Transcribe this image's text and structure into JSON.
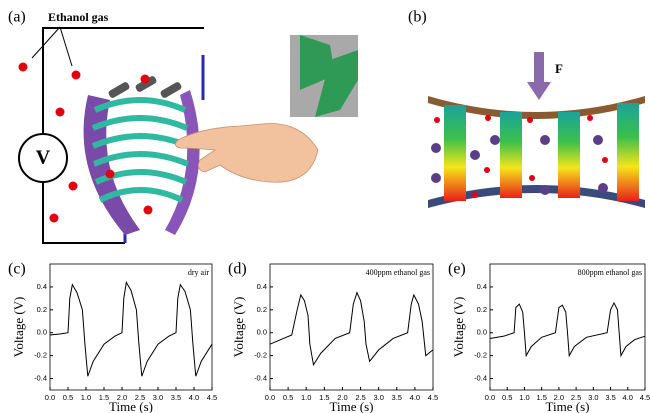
{
  "figure": {
    "panel_a": "(a)",
    "panel_b": "(b)",
    "gas_label": "Ethanol gas",
    "meter": "V",
    "force": "F"
  },
  "chart_data": [
    {
      "type": "line",
      "panel": "(c)",
      "annotation": "dry air",
      "xlabel": "Time (s)",
      "ylabel": "Voltage (V)",
      "color": "#000000",
      "x": [
        0,
        0.3,
        0.5,
        0.55,
        0.62,
        0.75,
        0.9,
        0.97,
        1.05,
        1.2,
        1.5,
        1.8,
        2.0,
        2.05,
        2.12,
        2.25,
        2.4,
        2.47,
        2.55,
        2.7,
        3.0,
        3.3,
        3.5,
        3.55,
        3.62,
        3.75,
        3.9,
        3.97,
        4.05,
        4.2,
        4.5
      ],
      "values": [
        -0.02,
        -0.01,
        0.0,
        0.3,
        0.42,
        0.35,
        0.2,
        -0.1,
        -0.38,
        -0.25,
        -0.1,
        -0.03,
        0.0,
        0.3,
        0.44,
        0.37,
        0.2,
        -0.1,
        -0.38,
        -0.25,
        -0.1,
        -0.03,
        0.0,
        0.3,
        0.42,
        0.36,
        0.2,
        -0.1,
        -0.38,
        -0.25,
        -0.1
      ],
      "xlim": [
        0,
        4.5
      ],
      "ylim": [
        -0.5,
        0.6
      ],
      "xticks": [
        {
          "value": 0,
          "label": "0.0"
        },
        0.5,
        {
          "value": 1,
          "label": "1.0"
        },
        1.5,
        {
          "value": 2,
          "label": "2.0"
        },
        2.5,
        {
          "value": 3,
          "label": "3.0"
        },
        3.5,
        {
          "value": 4,
          "label": "4.0"
        },
        4.5
      ],
      "yticks": [
        -0.4,
        -0.2,
        {
          "value": 0,
          "label": "0.0"
        },
        0.2,
        0.4
      ]
    },
    {
      "type": "line",
      "panel": "(d)",
      "annotation": "400ppm ethanol gas",
      "xlabel": "Time (s)",
      "ylabel": "Voltage (V)",
      "color": "#000000",
      "x": [
        0,
        0.3,
        0.6,
        0.75,
        0.85,
        0.95,
        1.05,
        1.1,
        1.2,
        1.4,
        1.8,
        2.2,
        2.3,
        2.4,
        2.5,
        2.6,
        2.65,
        2.75,
        3.0,
        3.4,
        3.8,
        3.9,
        3.97,
        4.1,
        4.2,
        4.3,
        4.5
      ],
      "values": [
        -0.1,
        -0.06,
        -0.02,
        0.2,
        0.33,
        0.28,
        0.15,
        -0.1,
        -0.28,
        -0.18,
        -0.05,
        0.0,
        0.25,
        0.35,
        0.28,
        0.1,
        -0.1,
        -0.25,
        -0.15,
        -0.05,
        0.0,
        0.25,
        0.33,
        0.25,
        0.1,
        -0.2,
        -0.15
      ],
      "xlim": [
        0,
        4.5
      ],
      "ylim": [
        -0.5,
        0.6
      ],
      "xticks": [
        {
          "value": 0,
          "label": "0.0"
        },
        0.5,
        {
          "value": 1,
          "label": "1.0"
        },
        1.5,
        {
          "value": 2,
          "label": "2.0"
        },
        2.5,
        {
          "value": 3,
          "label": "3.0"
        },
        3.5,
        {
          "value": 4,
          "label": "4.0"
        },
        4.5
      ],
      "yticks": [
        -0.4,
        -0.2,
        {
          "value": 0,
          "label": "0.0"
        },
        0.2,
        0.4
      ]
    },
    {
      "type": "line",
      "panel": "(e)",
      "annotation": "800ppm ethanol gas",
      "xlabel": "Time (s)",
      "ylabel": "Voltage (V)",
      "color": "#000000",
      "x": [
        0,
        0.4,
        0.7,
        0.75,
        0.85,
        0.95,
        1.0,
        1.05,
        1.2,
        1.5,
        1.9,
        2.0,
        2.1,
        2.2,
        2.25,
        2.3,
        2.45,
        2.8,
        3.4,
        3.5,
        3.6,
        3.7,
        3.75,
        3.8,
        3.95,
        4.2,
        4.5
      ],
      "values": [
        -0.05,
        -0.03,
        0.0,
        0.22,
        0.25,
        0.18,
        0.0,
        -0.2,
        -0.12,
        -0.04,
        0.0,
        0.22,
        0.24,
        0.18,
        0.0,
        -0.2,
        -0.12,
        -0.04,
        0.0,
        0.2,
        0.26,
        0.2,
        0.0,
        -0.2,
        -0.12,
        -0.06,
        -0.03
      ],
      "xlim": [
        0,
        4.5
      ],
      "ylim": [
        -0.5,
        0.6
      ],
      "xticks": [
        {
          "value": 0,
          "label": "0.0"
        },
        0.5,
        {
          "value": 1,
          "label": "1.0"
        },
        1.5,
        {
          "value": 2,
          "label": "2.0"
        },
        2.5,
        {
          "value": 3,
          "label": "3.0"
        },
        3.5,
        {
          "value": 4,
          "label": "4.0"
        },
        4.5
      ],
      "yticks": [
        -0.4,
        -0.2,
        {
          "value": 0,
          "label": "0.0"
        },
        0.2,
        0.4
      ]
    }
  ]
}
